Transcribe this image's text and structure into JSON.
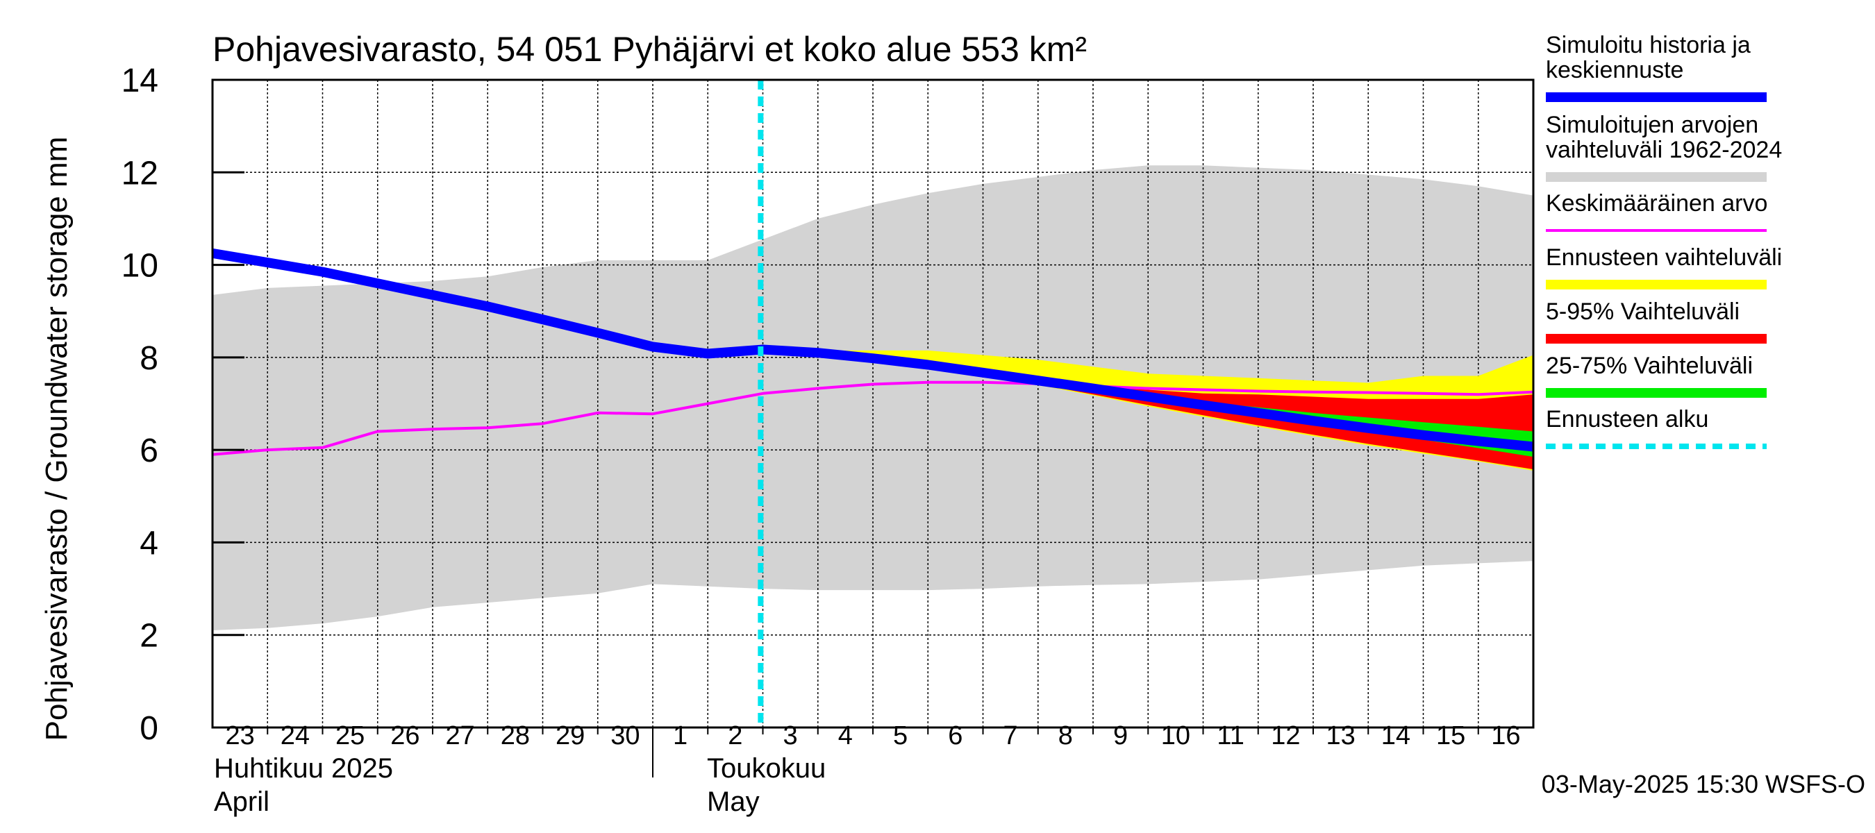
{
  "chart_data": {
    "type": "area",
    "title": "Pohjavesivarasto, 54 051 Pyhäjärvi et koko alue 553 km²",
    "ylabel": "Pohjavesivarasto / Groundwater storage   mm",
    "ylim": [
      0,
      14
    ],
    "yticks": [
      0,
      2,
      4,
      6,
      8,
      10,
      12,
      14
    ],
    "grid": true,
    "legend_position": "right",
    "x_day_labels": [
      "23",
      "24",
      "25",
      "26",
      "27",
      "28",
      "29",
      "30",
      "1",
      "2",
      "3",
      "4",
      "5",
      "6",
      "7",
      "8",
      "9",
      "10",
      "11",
      "12",
      "13",
      "14",
      "15",
      "16"
    ],
    "month_labels": [
      {
        "fi": "Huhtikuu  2025",
        "en": "April"
      },
      {
        "fi": "Toukokuu",
        "en": "May"
      }
    ],
    "forecast_start": "2025-05-03",
    "timestamp": "03-May-2025 15:30 WSFS-O",
    "series": [
      {
        "name": "Simuloitu historia ja keskiennuste",
        "color": "#0000ff",
        "x": [
          "2025-04-23",
          "2025-04-24",
          "2025-04-25",
          "2025-04-26",
          "2025-04-27",
          "2025-04-28",
          "2025-04-29",
          "2025-04-30",
          "2025-05-01",
          "2025-05-02",
          "2025-05-03",
          "2025-05-04",
          "2025-05-05",
          "2025-05-06",
          "2025-05-07",
          "2025-05-08",
          "2025-05-09",
          "2025-05-10",
          "2025-05-11",
          "2025-05-12",
          "2025-05-13",
          "2025-05-14",
          "2025-05-15",
          "2025-05-16",
          "2025-05-17"
        ],
        "values": [
          10.25,
          10.05,
          9.85,
          9.6,
          9.35,
          9.1,
          8.82,
          8.53,
          8.23,
          8.08,
          8.17,
          8.1,
          7.98,
          7.84,
          7.67,
          7.5,
          7.33,
          7.15,
          6.97,
          6.8,
          6.63,
          6.47,
          6.32,
          6.19,
          6.07
        ]
      },
      {
        "name": "Simuloitujen arvojen vaihteluväli 1962-2024",
        "color": "#d3d3d3",
        "x": [
          "2025-04-23",
          "2025-04-24",
          "2025-04-25",
          "2025-04-26",
          "2025-04-27",
          "2025-04-28",
          "2025-04-29",
          "2025-04-30",
          "2025-05-01",
          "2025-05-02",
          "2025-05-03",
          "2025-05-04",
          "2025-05-05",
          "2025-05-06",
          "2025-05-07",
          "2025-05-08",
          "2025-05-09",
          "2025-05-10",
          "2025-05-11",
          "2025-05-12",
          "2025-05-13",
          "2025-05-14",
          "2025-05-15",
          "2025-05-16",
          "2025-05-17"
        ],
        "low": [
          2.1,
          2.15,
          2.25,
          2.4,
          2.6,
          2.7,
          2.8,
          2.9,
          3.1,
          3.05,
          3.0,
          2.97,
          2.97,
          2.97,
          3.0,
          3.05,
          3.08,
          3.1,
          3.15,
          3.2,
          3.3,
          3.4,
          3.5,
          3.55,
          3.6
        ],
        "high": [
          9.35,
          9.5,
          9.55,
          9.6,
          9.65,
          9.75,
          9.95,
          10.1,
          10.1,
          10.1,
          10.55,
          11.0,
          11.3,
          11.55,
          11.75,
          11.9,
          12.05,
          12.15,
          12.15,
          12.1,
          12.05,
          11.95,
          11.85,
          11.7,
          11.5
        ]
      },
      {
        "name": "Keskimääräinen arvo",
        "color": "#ff00ff",
        "x": [
          "2025-04-23",
          "2025-04-24",
          "2025-04-25",
          "2025-04-26",
          "2025-04-27",
          "2025-04-28",
          "2025-04-29",
          "2025-04-30",
          "2025-05-01",
          "2025-05-02",
          "2025-05-03",
          "2025-05-04",
          "2025-05-05",
          "2025-05-06",
          "2025-05-07",
          "2025-05-08",
          "2025-05-09",
          "2025-05-10",
          "2025-05-11",
          "2025-05-12",
          "2025-05-13",
          "2025-05-14",
          "2025-05-15",
          "2025-05-16",
          "2025-05-17"
        ],
        "values": [
          5.9,
          6.0,
          6.05,
          6.4,
          6.45,
          6.48,
          6.57,
          6.8,
          6.78,
          7.0,
          7.22,
          7.33,
          7.42,
          7.46,
          7.46,
          7.43,
          7.38,
          7.33,
          7.3,
          7.27,
          7.25,
          7.24,
          7.22,
          7.2,
          7.25
        ]
      },
      {
        "name": "Ennusteen vaihteluväli",
        "color": "#ffff00",
        "x": [
          "2025-05-03",
          "2025-05-04",
          "2025-05-05",
          "2025-05-06",
          "2025-05-07",
          "2025-05-08",
          "2025-05-09",
          "2025-05-10",
          "2025-05-11",
          "2025-05-12",
          "2025-05-13",
          "2025-05-14",
          "2025-05-15",
          "2025-05-16",
          "2025-05-17"
        ],
        "low": [
          8.17,
          8.1,
          7.96,
          7.8,
          7.6,
          7.4,
          7.18,
          6.94,
          6.72,
          6.5,
          6.3,
          6.1,
          5.92,
          5.75,
          5.55
        ],
        "high": [
          8.17,
          8.15,
          8.15,
          8.15,
          8.05,
          7.95,
          7.8,
          7.65,
          7.6,
          7.55,
          7.5,
          7.45,
          7.6,
          7.6,
          8.05
        ]
      },
      {
        "name": "5-95% Vaihteluväli",
        "color": "#ff0000",
        "x": [
          "2025-05-03",
          "2025-05-04",
          "2025-05-05",
          "2025-05-06",
          "2025-05-07",
          "2025-05-08",
          "2025-05-09",
          "2025-05-10",
          "2025-05-11",
          "2025-05-12",
          "2025-05-13",
          "2025-05-14",
          "2025-05-15",
          "2025-05-16",
          "2025-05-17"
        ],
        "low": [
          8.17,
          8.1,
          7.96,
          7.8,
          7.62,
          7.42,
          7.2,
          6.97,
          6.75,
          6.53,
          6.33,
          6.13,
          5.95,
          5.77,
          5.58
        ],
        "high": [
          8.17,
          8.1,
          7.98,
          7.84,
          7.67,
          7.5,
          7.38,
          7.3,
          7.22,
          7.2,
          7.15,
          7.1,
          7.1,
          7.1,
          7.2
        ]
      },
      {
        "name": "25-75% Vaihteluväli",
        "color": "#00ee00",
        "x": [
          "2025-05-03",
          "2025-05-04",
          "2025-05-05",
          "2025-05-06",
          "2025-05-07",
          "2025-05-08",
          "2025-05-09",
          "2025-05-10",
          "2025-05-11",
          "2025-05-12",
          "2025-05-13",
          "2025-05-14",
          "2025-05-15",
          "2025-05-16",
          "2025-05-17"
        ],
        "low": [
          8.17,
          8.1,
          7.98,
          7.84,
          7.67,
          7.5,
          7.33,
          7.14,
          6.95,
          6.77,
          6.58,
          6.4,
          6.22,
          6.04,
          5.85
        ],
        "high": [
          8.17,
          8.1,
          7.98,
          7.84,
          7.67,
          7.5,
          7.35,
          7.18,
          7.04,
          6.92,
          6.8,
          6.7,
          6.6,
          6.5,
          6.4
        ]
      }
    ],
    "legend": [
      {
        "label": "Simuloitu historia ja keskiennuste",
        "color": "#0000ff",
        "style": "line"
      },
      {
        "label": "Simuloitujen arvojen vaihteluväli 1962-2024",
        "color": "#d3d3d3",
        "style": "band"
      },
      {
        "label": "Keskimääräinen arvo",
        "color": "#ff00ff",
        "style": "thin"
      },
      {
        "label": "Ennusteen vaihteluväli",
        "color": "#ffff00",
        "style": "band"
      },
      {
        "label": "5-95% Vaihteluväli",
        "color": "#ff0000",
        "style": "band"
      },
      {
        "label": "25-75% Vaihteluväli",
        "color": "#00ee00",
        "style": "band"
      },
      {
        "label": "Ennusteen alku",
        "color": "#00e5ee",
        "style": "dashed"
      }
    ]
  }
}
